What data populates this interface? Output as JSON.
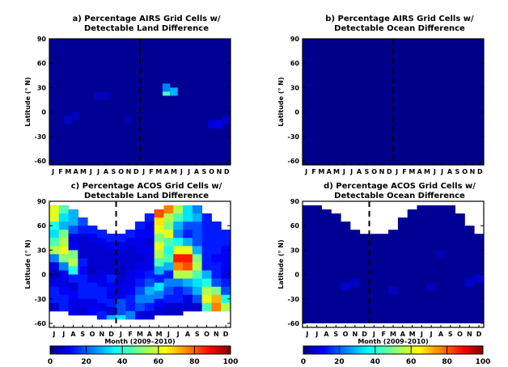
{
  "chart_data": [
    {
      "id": "a",
      "type": "heatmap",
      "title": [
        "a) Percentage AIRS Grid Cells w/",
        "Detectable Land Difference"
      ],
      "ylabel": "Latitude (° N)",
      "xlabel": "",
      "x_ticks": [
        "J",
        "F",
        "M",
        "A",
        "M",
        "J",
        "J",
        "A",
        "S",
        "O",
        "N",
        "D",
        "J",
        "F",
        "M",
        "A",
        "M",
        "J",
        "J",
        "A",
        "S",
        "O",
        "N",
        "D"
      ],
      "y_ticks": [
        90,
        60,
        30,
        0,
        -30,
        -60
      ],
      "ylim": [
        -65,
        90
      ],
      "divider_month_index": 11.5,
      "background_value": 2,
      "cells": [
        {
          "month": 15,
          "lat": 25,
          "value": 45
        },
        {
          "month": 16,
          "lat": 25,
          "value": 30
        },
        {
          "month": 15,
          "lat": 30,
          "value": 25
        },
        {
          "month": 6,
          "lat": 20,
          "value": 6
        },
        {
          "month": 7,
          "lat": 20,
          "value": 6
        },
        {
          "month": 2,
          "lat": -10,
          "value": 8
        },
        {
          "month": 3,
          "lat": -5,
          "value": 6
        },
        {
          "month": 21,
          "lat": -15,
          "value": 8
        },
        {
          "month": 22,
          "lat": -15,
          "value": 10
        },
        {
          "month": 23,
          "lat": -10,
          "value": 8
        },
        {
          "month": 10,
          "lat": -10,
          "value": 5
        }
      ]
    },
    {
      "id": "b",
      "type": "heatmap",
      "title": [
        "b) Percentage AIRS Grid Cells w/",
        "Detectable Ocean Difference"
      ],
      "ylabel": "Latitude (° N)",
      "xlabel": "",
      "x_ticks": [
        "J",
        "F",
        "M",
        "A",
        "M",
        "J",
        "J",
        "A",
        "S",
        "O",
        "N",
        "D",
        "J",
        "F",
        "M",
        "A",
        "M",
        "J",
        "J",
        "A",
        "S",
        "O",
        "N",
        "D"
      ],
      "y_ticks": [
        90,
        60,
        30,
        0,
        -30,
        -60
      ],
      "ylim": [
        -65,
        90
      ],
      "divider_month_index": 11.5,
      "background_value": 1,
      "cells": []
    },
    {
      "id": "c",
      "type": "heatmap",
      "title": [
        "c) Percentage ACOS Grid Cells w/",
        "Detectable Land Difference"
      ],
      "ylabel": "Latitude (° N)",
      "xlabel": "Month (2009–2010)",
      "x_ticks": [
        "J",
        "J",
        "A",
        "S",
        "O",
        "N",
        "D",
        "J",
        "F",
        "M",
        "A",
        "M",
        "J",
        "J",
        "A",
        "S",
        "O",
        "N",
        "D"
      ],
      "y_ticks": [
        90,
        60,
        30,
        0,
        -30,
        -60
      ],
      "ylim": [
        -65,
        90
      ],
      "divider_month_index": 6.5,
      "background_value": 6,
      "coverage": [
        [
          -45,
          85
        ],
        [
          -45,
          85
        ],
        [
          -50,
          80
        ],
        [
          -50,
          70
        ],
        [
          -50,
          60
        ],
        [
          -55,
          55
        ],
        [
          -55,
          50
        ],
        [
          -55,
          50
        ],
        [
          -55,
          55
        ],
        [
          -55,
          65
        ],
        [
          -55,
          75
        ],
        [
          -50,
          80
        ],
        [
          -50,
          85
        ],
        [
          -50,
          85
        ],
        [
          -45,
          85
        ],
        [
          -45,
          85
        ],
        [
          -45,
          75
        ],
        [
          -45,
          65
        ],
        [
          -45,
          55
        ]
      ],
      "columns": [
        [
          60,
          60,
          40,
          35,
          45,
          55,
          25,
          10,
          5,
          10,
          15,
          15,
          8,
          6,
          6
        ],
        [
          45,
          35,
          30,
          50,
          55,
          60,
          50,
          25,
          10,
          10,
          12,
          15,
          15,
          8,
          6
        ],
        [
          30,
          30,
          20,
          10,
          12,
          50,
          55,
          40,
          15,
          8,
          12,
          10,
          10,
          8,
          6
        ],
        [
          20,
          15,
          8,
          8,
          8,
          15,
          12,
          15,
          15,
          15,
          10,
          8,
          8,
          6,
          6
        ],
        [
          15,
          10,
          8,
          8,
          8,
          6,
          10,
          15,
          15,
          10,
          12,
          10,
          8,
          6,
          6
        ],
        [
          15,
          10,
          8,
          8,
          8,
          10,
          10,
          15,
          15,
          10,
          15,
          25,
          8,
          6,
          6
        ],
        [
          15,
          10,
          8,
          8,
          8,
          15,
          12,
          10,
          15,
          8,
          30,
          32,
          8,
          6,
          6
        ],
        [
          15,
          10,
          8,
          8,
          6,
          8,
          10,
          10,
          20,
          20,
          35,
          30,
          8,
          6,
          6
        ],
        [
          15,
          10,
          8,
          8,
          8,
          10,
          10,
          12,
          15,
          15,
          25,
          15,
          8,
          6,
          6
        ],
        [
          15,
          12,
          10,
          10,
          8,
          10,
          12,
          15,
          20,
          25,
          20,
          10,
          8,
          6,
          6
        ],
        [
          15,
          10,
          12,
          8,
          10,
          10,
          10,
          15,
          20,
          30,
          25,
          15,
          8,
          6,
          6
        ],
        [
          80,
          65,
          60,
          50,
          60,
          55,
          45,
          30,
          15,
          35,
          25,
          12,
          8,
          6,
          6
        ],
        [
          75,
          55,
          50,
          60,
          45,
          40,
          45,
          30,
          15,
          25,
          20,
          15,
          8,
          6,
          6
        ],
        [
          55,
          45,
          30,
          25,
          40,
          60,
          85,
          75,
          55,
          25,
          15,
          15,
          8,
          6,
          6
        ],
        [
          35,
          35,
          20,
          15,
          30,
          60,
          85,
          80,
          55,
          30,
          20,
          10,
          8,
          6,
          6
        ],
        [
          25,
          30,
          20,
          20,
          20,
          30,
          50,
          55,
          45,
          35,
          30,
          20,
          8,
          6,
          6
        ],
        [
          15,
          15,
          15,
          15,
          15,
          15,
          15,
          30,
          40,
          55,
          60,
          45,
          35,
          8,
          6
        ],
        [
          15,
          15,
          15,
          15,
          12,
          15,
          15,
          20,
          50,
          70,
          75,
          70,
          50,
          8,
          6
        ],
        [
          15,
          15,
          12,
          12,
          12,
          10,
          15,
          20,
          40,
          55,
          70,
          65,
          45,
          8,
          6
        ]
      ]
    },
    {
      "id": "d",
      "type": "heatmap",
      "title": [
        "d) Percentage ACOS Grid Cells w/",
        "Detectable Ocean Difference"
      ],
      "ylabel": "Latitude (° N)",
      "xlabel": "Month (2009–2010)",
      "x_ticks": [
        "J",
        "J",
        "A",
        "S",
        "O",
        "N",
        "D",
        "J",
        "F",
        "M",
        "A",
        "M",
        "J",
        "J",
        "A",
        "S",
        "O",
        "N",
        "D"
      ],
      "y_ticks": [
        90,
        60,
        30,
        0,
        -30,
        -60
      ],
      "ylim": [
        -65,
        90
      ],
      "divider_month_index": 6.5,
      "background_value": 2,
      "coverage": [
        [
          -60,
          85
        ],
        [
          -60,
          85
        ],
        [
          -60,
          80
        ],
        [
          -60,
          75
        ],
        [
          -60,
          65
        ],
        [
          -60,
          55
        ],
        [
          -60,
          50
        ],
        [
          -60,
          50
        ],
        [
          -60,
          50
        ],
        [
          -60,
          55
        ],
        [
          -60,
          70
        ],
        [
          -60,
          80
        ],
        [
          -60,
          85
        ],
        [
          -60,
          85
        ],
        [
          -60,
          85
        ],
        [
          -60,
          85
        ],
        [
          -60,
          75
        ],
        [
          -60,
          60
        ],
        [
          -60,
          50
        ]
      ],
      "cells": [
        {
          "month": 4,
          "lat": -15,
          "value": 8
        },
        {
          "month": 5,
          "lat": -10,
          "value": 7
        },
        {
          "month": 9,
          "lat": -20,
          "value": 6
        },
        {
          "month": 13,
          "lat": -15,
          "value": 6
        },
        {
          "month": 17,
          "lat": -10,
          "value": 7
        },
        {
          "month": 18,
          "lat": -5,
          "value": 8
        },
        {
          "month": 14,
          "lat": 25,
          "value": 5
        }
      ]
    }
  ],
  "colorbars": [
    {
      "ticks": [
        0,
        20,
        40,
        60,
        80,
        100
      ],
      "label": "Month (2009–2010)",
      "range": [
        0,
        100
      ]
    },
    {
      "ticks": [
        0,
        20,
        40,
        60,
        80,
        100
      ],
      "label": "Month (2009–2010)",
      "range": [
        0,
        100
      ]
    }
  ]
}
